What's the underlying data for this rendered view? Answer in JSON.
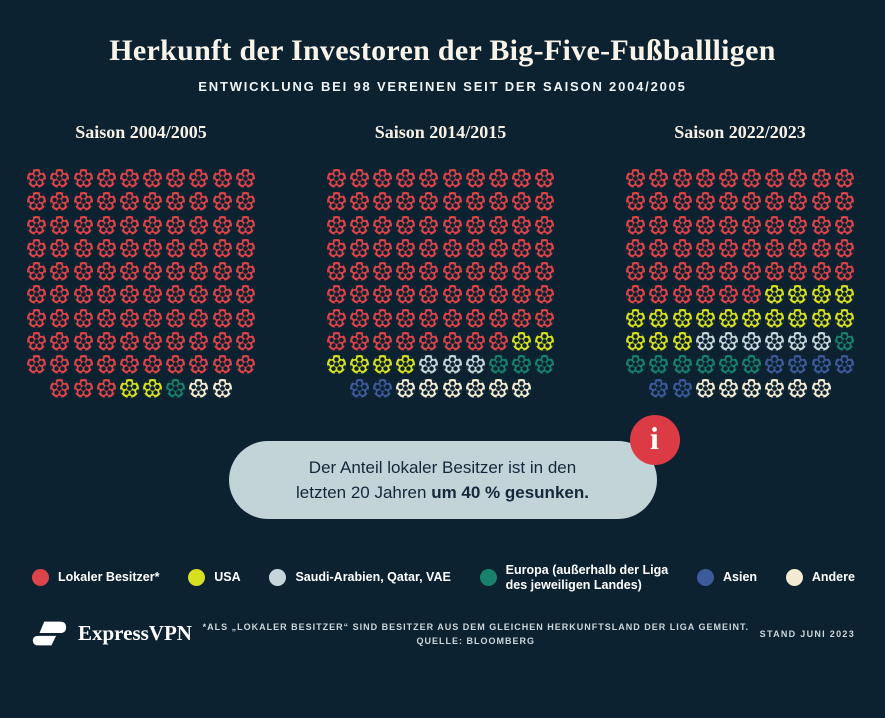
{
  "theme": {
    "background": "#0d2231",
    "callout_bg": "#c2d4d8",
    "info_badge_bg": "#dc3b46",
    "title_color": "#f8f4e9"
  },
  "header": {
    "title": "Herkunft der Investoren der Big-Five-Fußballligen",
    "subtitle": "ENTWICKLUNG BEI 98 VEREINEN SEIT DER SAISON 2004/2005"
  },
  "categories": [
    {
      "id": "local",
      "label": "Lokaler Besitzer*",
      "color": "#dc4449"
    },
    {
      "id": "usa",
      "label": "USA",
      "color": "#d7df21"
    },
    {
      "id": "saudi",
      "label": "Saudi-Arabien, Qatar, VAE",
      "color": "#c5d6da"
    },
    {
      "id": "europa",
      "label": "Europa (außerhalb der Liga\ndes jeweiligen Landes)",
      "color": "#17816b"
    },
    {
      "id": "asien",
      "label": "Asien",
      "color": "#3d5a9b"
    },
    {
      "id": "andere",
      "label": "Andere",
      "color": "#f2ebd2"
    }
  ],
  "charts": [
    {
      "label": "Saison 2004/2005",
      "counts": {
        "local": 93,
        "usa": 2,
        "saudi": 0,
        "europa": 1,
        "asien": 0,
        "andere": 2
      }
    },
    {
      "label": "Saison 2014/2015",
      "counts": {
        "local": 78,
        "usa": 6,
        "saudi": 3,
        "europa": 3,
        "asien": 2,
        "andere": 6
      }
    },
    {
      "label": "Saison 2022/2023",
      "counts": {
        "local": 56,
        "usa": 17,
        "saudi": 6,
        "europa": 7,
        "asien": 6,
        "andere": 6
      }
    }
  ],
  "chart_data": {
    "type": "waffle",
    "title": "Herkunft der Investoren der Big-Five-Fußballligen",
    "subtitle": "ENTWICKLUNG BEI 98 VEREINEN SEIT DER SAISON 2004/2005",
    "unit": "Vereine (clubs), 1 Ball = 1 Verein",
    "total_per_chart": 98,
    "grid": {
      "columns": 10,
      "rows": 10,
      "last_row_count": 8,
      "last_row_centered": true
    },
    "categories": [
      "Lokaler Besitzer*",
      "USA",
      "Saudi-Arabien, Qatar, VAE",
      "Europa (außerhalb der Liga des jeweiligen Landes)",
      "Asien",
      "Andere"
    ],
    "series": [
      {
        "name": "Saison 2004/2005",
        "values": [
          93,
          2,
          0,
          1,
          0,
          2
        ]
      },
      {
        "name": "Saison 2014/2015",
        "values": [
          78,
          6,
          3,
          3,
          2,
          6
        ]
      },
      {
        "name": "Saison 2022/2023",
        "values": [
          56,
          17,
          6,
          7,
          6,
          6
        ]
      }
    ],
    "legend_position": "bottom",
    "annotation": "Der Anteil lokaler Besitzer ist in den letzten 20 Jahren um 40 % gesunken."
  },
  "callout": {
    "line1": "Der Anteil lokaler Besitzer ist in den",
    "line2_normal": "letzten 20 Jahren ",
    "line2_bold": "um 40 % gesunken.",
    "info_icon": "i"
  },
  "footer": {
    "brand": "ExpressVPN",
    "footnote_line1": "*ALS „LOKALER BESITZER“ SIND BESITZER AUS DEM GLEICHEN HERKUNFTSLAND DER LIGA GEMEINT.",
    "footnote_line2": "QUELLE: BLOOMBERG",
    "stand": "STAND JUNI 2023"
  }
}
